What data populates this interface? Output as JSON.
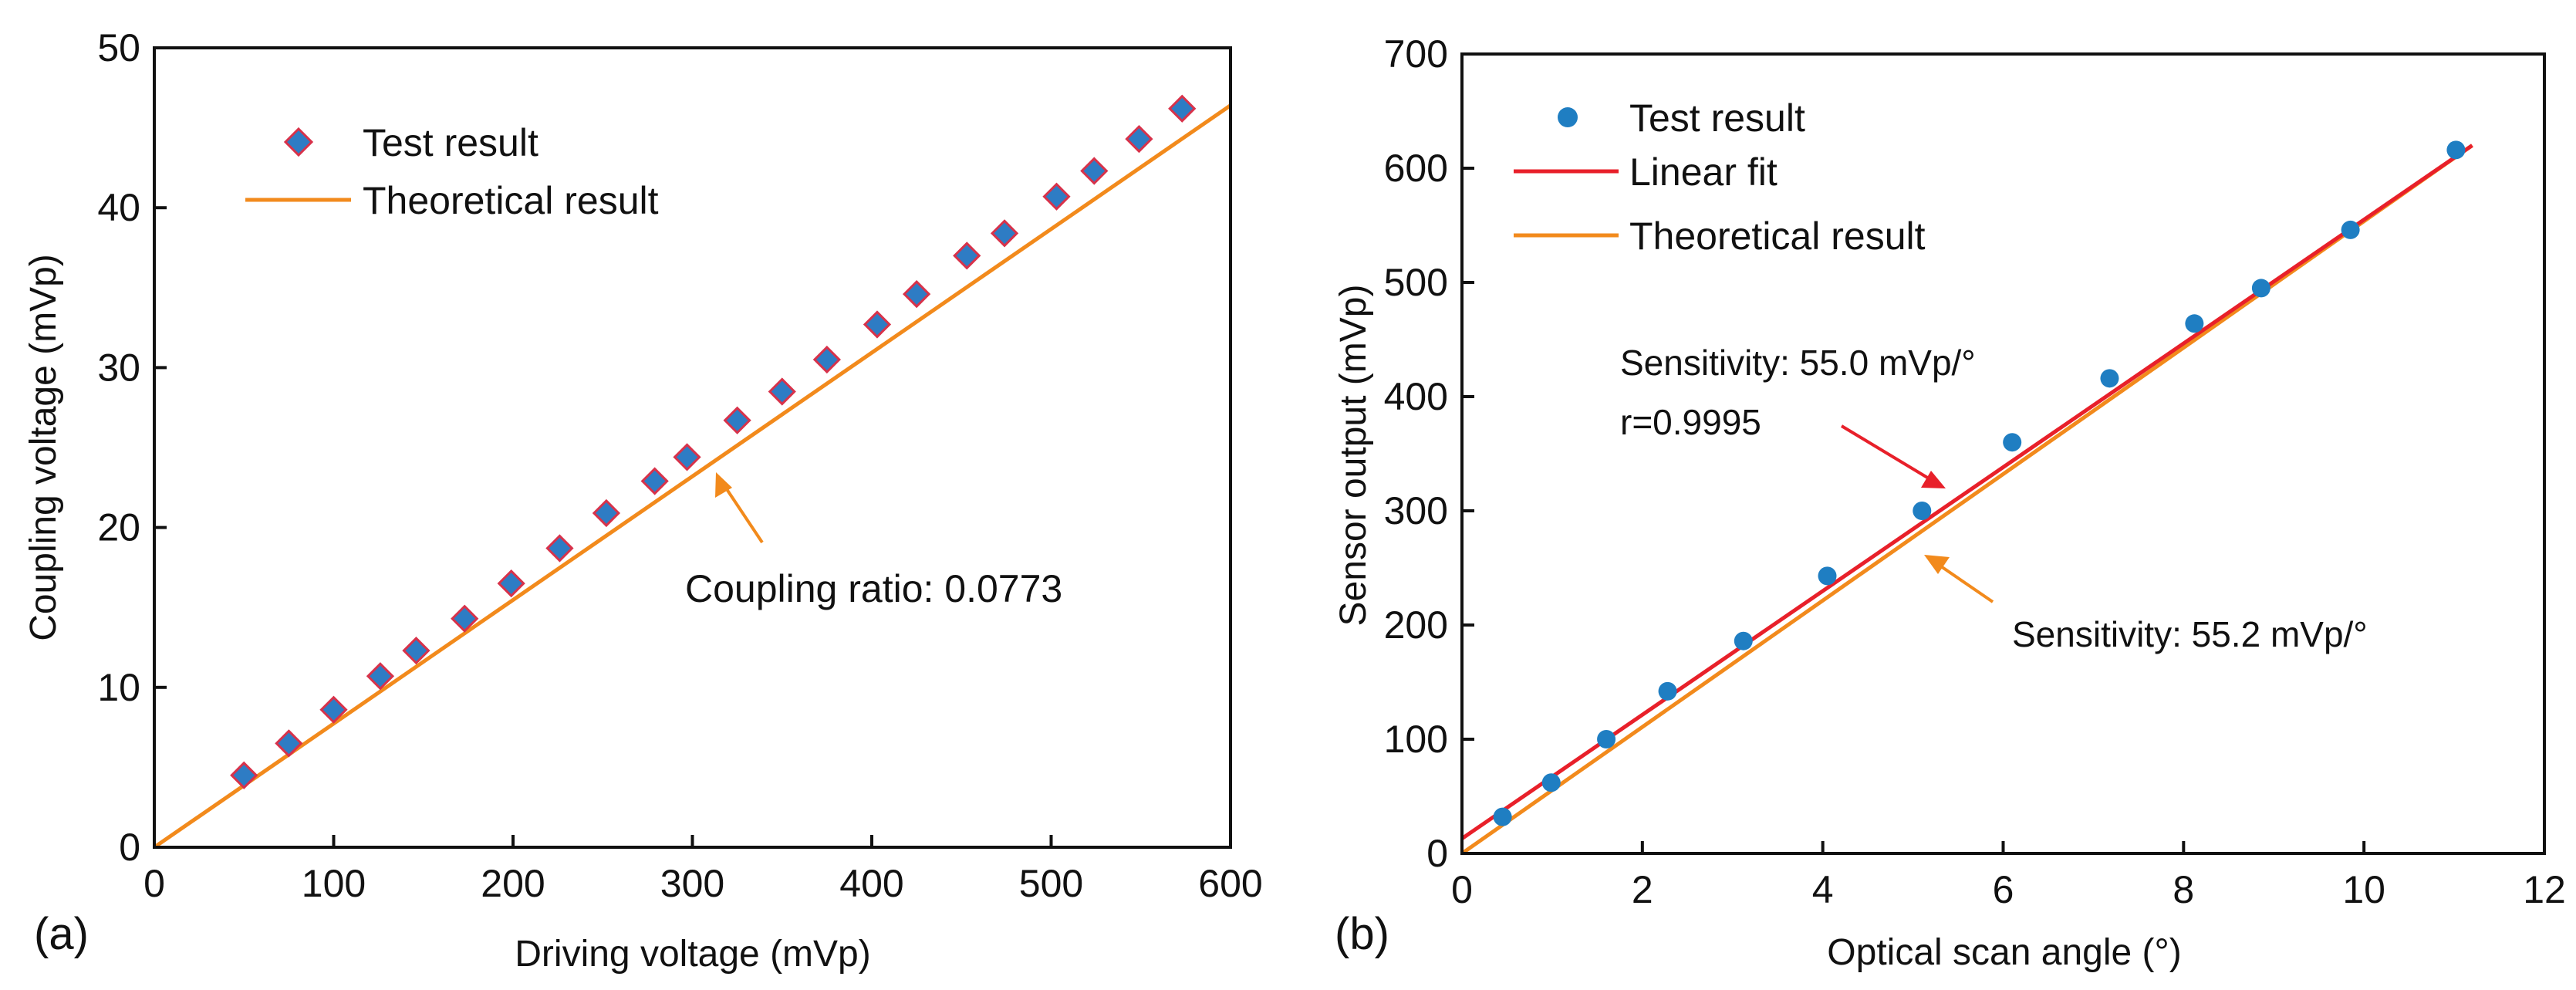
{
  "colors": {
    "theory": "#F28A1C",
    "fit": "#E8202A",
    "diamond_fill": "#2E7CC4",
    "diamond_edge": "#D8324A",
    "dot": "#1F7EC2",
    "axis": "#111111"
  },
  "chart_data": [
    {
      "id": "a",
      "type": "scatter",
      "panel_label": "(a)",
      "xlabel": "Driving voltage (mVp)",
      "ylabel": "Coupling voltage (mVp)",
      "xlim": [
        0,
        600
      ],
      "ylim": [
        0,
        50
      ],
      "xticks": [
        0,
        100,
        200,
        300,
        400,
        500,
        600
      ],
      "yticks": [
        0,
        10,
        20,
        30,
        40,
        50
      ],
      "series": [
        {
          "name": "Test result",
          "kind": "markers",
          "marker": "diamond",
          "points": [
            [
              50,
              4.5
            ],
            [
              75,
              6.5
            ],
            [
              100,
              8.6
            ],
            [
              126,
              10.7
            ],
            [
              146,
              12.3
            ],
            [
              173,
              14.3
            ],
            [
              199,
              16.5
            ],
            [
              226,
              18.7
            ],
            [
              252,
              20.9
            ],
            [
              279,
              22.9
            ],
            [
              297,
              24.4
            ],
            [
              325,
              26.7
            ],
            [
              350,
              28.5
            ],
            [
              375,
              30.5
            ],
            [
              403,
              32.7
            ],
            [
              425,
              34.6
            ],
            [
              453,
              37.0
            ],
            [
              474,
              38.4
            ],
            [
              503,
              40.7
            ],
            [
              524,
              42.3
            ],
            [
              549,
              44.3
            ],
            [
              573,
              46.2
            ]
          ]
        },
        {
          "name": "Theoretical result",
          "kind": "line",
          "points": [
            [
              0,
              0
            ],
            [
              600,
              46.4
            ]
          ]
        }
      ],
      "legend": [
        "Test result",
        "Theoretical result"
      ],
      "annotations": [
        {
          "text": "Coupling ratio: 0.0773",
          "arrow_to": [
            307,
            23.7
          ]
        }
      ]
    },
    {
      "id": "b",
      "type": "scatter",
      "panel_label": "(b)",
      "xlabel": "Optical scan angle (°)",
      "ylabel": "Sensor output (mVp)",
      "xlim": [
        0,
        12
      ],
      "ylim": [
        0,
        700
      ],
      "xticks": [
        0,
        2,
        4,
        6,
        8,
        10,
        12
      ],
      "yticks": [
        0,
        100,
        200,
        300,
        400,
        500,
        600,
        700
      ],
      "series": [
        {
          "name": "Test result",
          "kind": "markers",
          "marker": "circle",
          "points": [
            [
              0.45,
              32
            ],
            [
              0.99,
              62
            ],
            [
              1.6,
              100
            ],
            [
              2.28,
              142
            ],
            [
              3.12,
              186
            ],
            [
              4.05,
              243
            ],
            [
              5.1,
              300
            ],
            [
              6.1,
              360
            ],
            [
              7.18,
              416
            ],
            [
              8.12,
              464
            ],
            [
              8.86,
              495
            ],
            [
              9.85,
              546
            ],
            [
              11.02,
              616
            ]
          ]
        },
        {
          "name": "Linear fit",
          "kind": "line",
          "points": [
            [
              0,
              13
            ],
            [
              11.2,
              620
            ]
          ]
        },
        {
          "name": "Theoretical result",
          "kind": "line",
          "points": [
            [
              0,
              0
            ],
            [
              11.2,
              620
            ]
          ]
        }
      ],
      "legend": [
        "Test result",
        "Linear fit",
        "Theoretical result"
      ],
      "annotations": [
        {
          "text": "Sensitivity: 55.0 mVp/°",
          "arrow_to": [
            5.4,
            324
          ]
        },
        {
          "text": "r=0.9995"
        },
        {
          "text": "Sensitivity: 55.2 mVp/°",
          "arrow_to": [
            5.1,
            270
          ]
        }
      ]
    }
  ]
}
